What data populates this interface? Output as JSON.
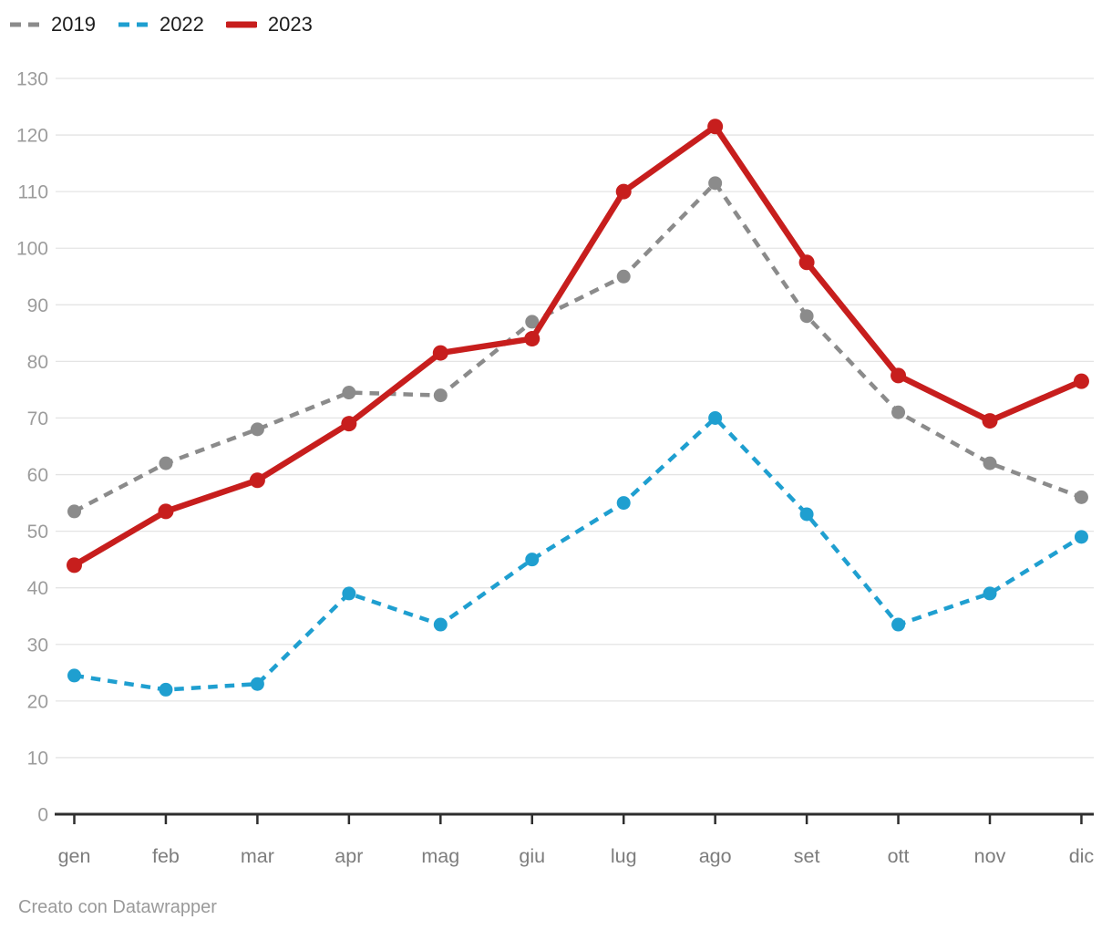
{
  "chart_data": {
    "type": "line",
    "categories": [
      "gen",
      "feb",
      "mar",
      "apr",
      "mag",
      "giu",
      "lug",
      "ago",
      "set",
      "ott",
      "nov",
      "dic"
    ],
    "series": [
      {
        "name": "2019",
        "color": "#8b8b8b",
        "style": "dashed",
        "values": [
          53.5,
          62,
          68,
          74.5,
          74,
          87,
          95,
          111.5,
          88,
          71,
          62,
          56
        ]
      },
      {
        "name": "2022",
        "color": "#1f9fd0",
        "style": "dashed",
        "values": [
          24.5,
          22,
          23,
          39,
          33.5,
          45,
          55,
          70,
          53,
          33.5,
          39,
          49
        ]
      },
      {
        "name": "2023",
        "color": "#c71e1d",
        "style": "solid",
        "values": [
          44,
          53.5,
          59,
          69,
          81.5,
          84,
          110,
          121.5,
          97.5,
          77.5,
          69.5,
          76.5
        ]
      }
    ],
    "title": "",
    "xlabel": "",
    "ylabel": "",
    "ylim": [
      0,
      130
    ],
    "y_ticks": [
      0,
      10,
      20,
      30,
      40,
      50,
      60,
      70,
      80,
      90,
      100,
      110,
      120,
      130
    ],
    "grid": "horizontal",
    "legend_position": "top-left"
  },
  "colors": {
    "background": "#ffffff",
    "gridline": "#e4e4e4",
    "axis": "#2e2e2e",
    "y_tick_label": "#9c9c9c",
    "x_tick_label": "#7d7d7d",
    "legend_text": "#1d1d1d",
    "footer_text": "#9a9a9a"
  },
  "footer": {
    "attribution": "Creato con Datawrapper"
  }
}
